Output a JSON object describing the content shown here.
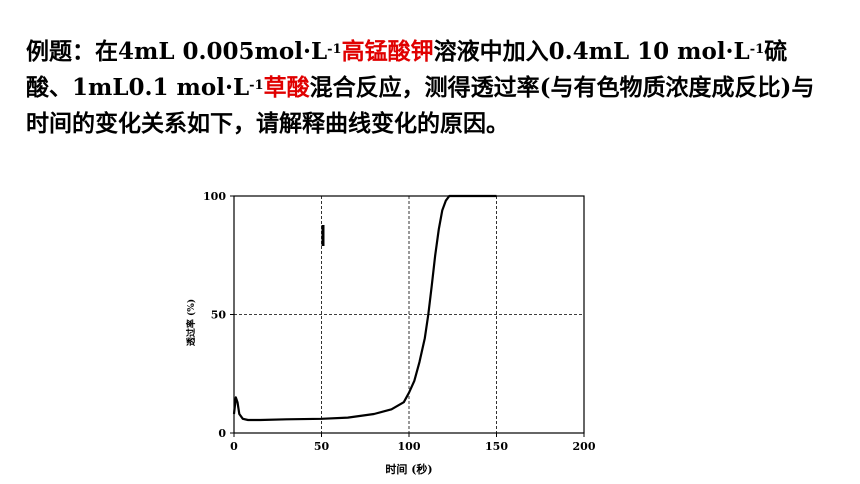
{
  "problem": {
    "segments": [
      {
        "text": "例题：在4mL 0.005mol·L",
        "style": "normal"
      },
      {
        "text": "-1",
        "style": "sup"
      },
      {
        "text": "高锰酸钾",
        "style": "red"
      },
      {
        "text": "溶液中加入0.4mL 10 mol·L",
        "style": "normal"
      },
      {
        "text": "-1",
        "style": "sup"
      },
      {
        "text": "硫酸、1mL0.1 mol·L",
        "style": "normal"
      },
      {
        "text": "-1",
        "style": "sup"
      },
      {
        "text": "草酸",
        "style": "red"
      },
      {
        "text": "混合反应，测得透过率(与有色物质浓度成反比)与时间的变化关系如下，请解释曲线变化的原因。",
        "style": "normal"
      }
    ]
  },
  "colors": {
    "red_text": "#e00000",
    "curve": "#000000",
    "grid": "#000000"
  },
  "chart_data": {
    "type": "line",
    "xlabel": "时间 (秒)",
    "ylabel": "透过率 (%)",
    "xlim": [
      0,
      200
    ],
    "ylim": [
      0,
      100
    ],
    "xticks": [
      "0",
      "50",
      "100",
      "150",
      "200"
    ],
    "yticks": [
      "0",
      "50",
      "100"
    ],
    "grid": true,
    "series": [
      {
        "x": [
          0,
          1,
          2,
          3,
          5,
          8,
          15,
          30,
          50,
          65,
          80,
          90,
          97,
          100,
          103,
          106,
          109,
          111,
          113,
          115,
          117,
          119,
          121,
          123,
          125,
          135,
          150
        ],
        "y": [
          8,
          15,
          13,
          8,
          6,
          5.5,
          5.5,
          5.8,
          6,
          6.5,
          8,
          10,
          13,
          17,
          22,
          30,
          40,
          50,
          62,
          75,
          86,
          94,
          98,
          100,
          100,
          100,
          100
        ]
      }
    ]
  }
}
